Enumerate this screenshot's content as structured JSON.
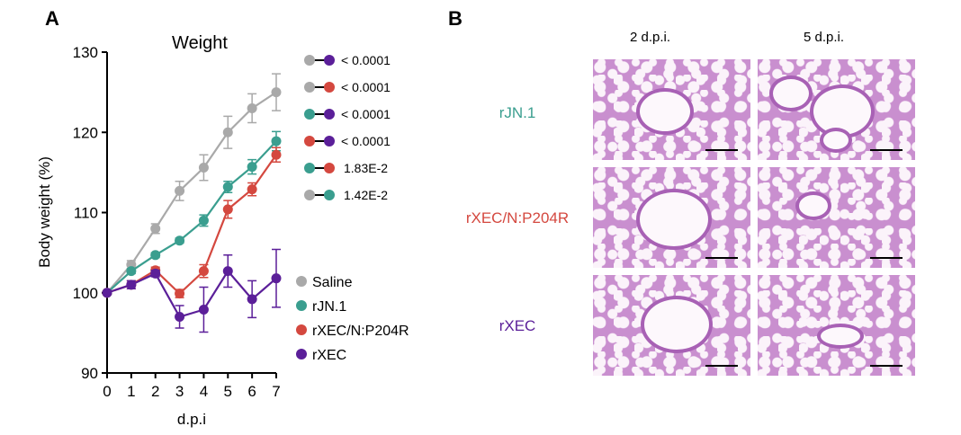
{
  "panels": {
    "a": "A",
    "b": "B"
  },
  "chart_data": {
    "type": "line",
    "title": "Weight",
    "xlabel": "d.p.i",
    "ylabel": "Body weight (%)",
    "x": [
      0,
      1,
      2,
      3,
      4,
      5,
      6,
      7
    ],
    "xlim": [
      0,
      7
    ],
    "ylim": [
      90,
      130
    ],
    "yticks": [
      90,
      100,
      110,
      120,
      130
    ],
    "series": [
      {
        "name": "Saline",
        "color": "#a9a9a9",
        "values": [
          100,
          103.5,
          108,
          112.7,
          115.6,
          120,
          123,
          125
        ],
        "err": [
          0,
          0.5,
          0.6,
          1.2,
          1.6,
          2,
          1.8,
          2.3
        ]
      },
      {
        "name": "rJN.1",
        "color": "#3a9e8f",
        "values": [
          100,
          102.7,
          104.7,
          106.5,
          109,
          113.2,
          115.7,
          118.9
        ],
        "err": [
          0,
          0.3,
          0.3,
          0.3,
          0.7,
          0.7,
          0.9,
          1.2
        ]
      },
      {
        "name": "rXEC/N:P204R",
        "color": "#d4483f",
        "values": [
          100,
          101,
          102.8,
          99.9,
          102.7,
          110.4,
          112.9,
          117.2
        ],
        "err": [
          0,
          0.5,
          0.4,
          0.5,
          0.8,
          1.1,
          0.8,
          0.9
        ]
      },
      {
        "name": "rXEC",
        "color": "#5b1f99",
        "values": [
          100,
          101,
          102.4,
          97,
          97.9,
          102.7,
          99.2,
          101.8
        ],
        "err": [
          0,
          0.5,
          0.4,
          1.4,
          2.8,
          2,
          2.3,
          3.6
        ]
      }
    ],
    "legend": "bottom-right",
    "comparisons": [
      {
        "a": 0,
        "b": 3,
        "p": "< 0.0001"
      },
      {
        "a": 0,
        "b": 2,
        "p": "< 0.0001"
      },
      {
        "a": 1,
        "b": 3,
        "p": "< 0.0001"
      },
      {
        "a": 2,
        "b": 3,
        "p": "< 0.0001"
      },
      {
        "a": 1,
        "b": 2,
        "p": "1.83E-2"
      },
      {
        "a": 0,
        "b": 1,
        "p": "1.42E-2"
      }
    ]
  },
  "histology": {
    "columns": [
      "2 d.p.i.",
      "5 d.p.i."
    ],
    "rows": [
      {
        "label": "rJN.1",
        "color": "#3a9e8f"
      },
      {
        "label": "rXEC/N:P204R",
        "color": "#d4483f"
      },
      {
        "label": "rXEC",
        "color": "#5b1f99"
      }
    ]
  }
}
